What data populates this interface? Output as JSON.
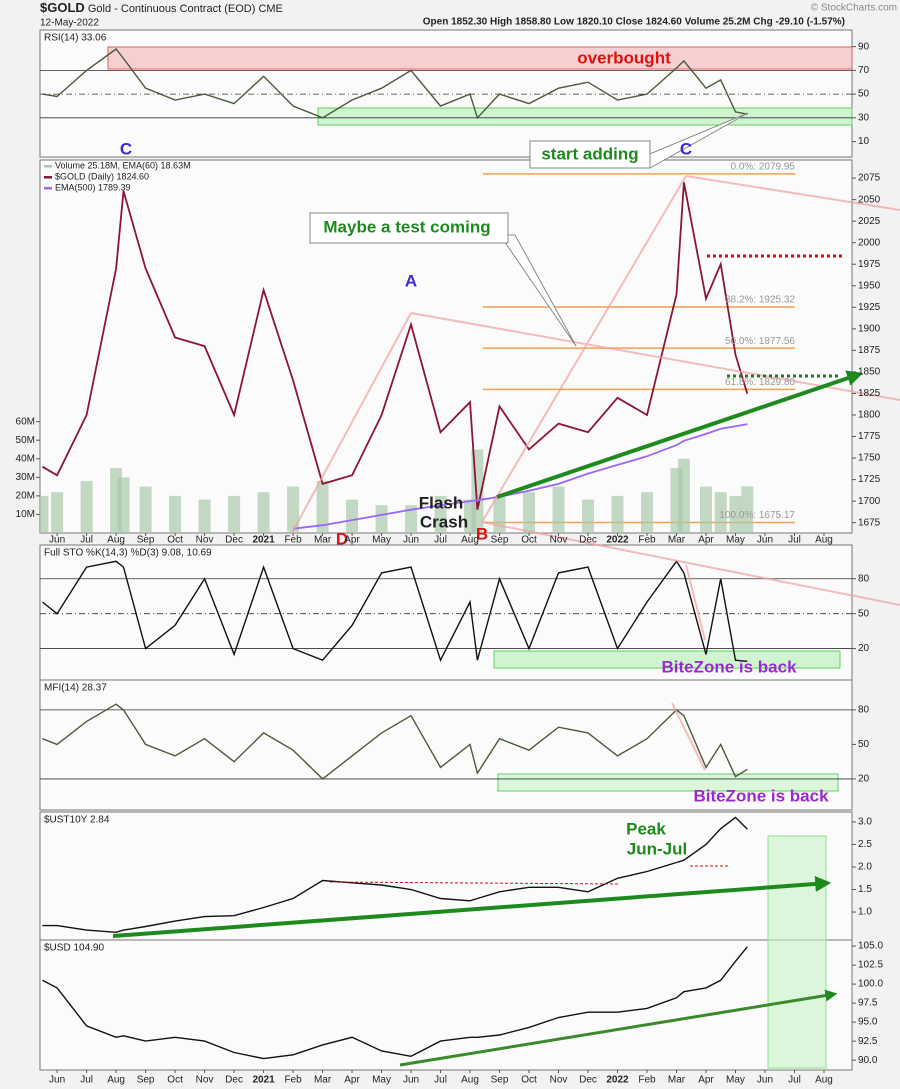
{
  "header": {
    "symbol": "$GOLD",
    "name": "Gold - Continuous Contract (EOD)",
    "exchange": "CME",
    "date": "12-May-2022",
    "quote": "Open 1852.30 High 1858.80 Low 1820.10 Close 1824.60 Volume 25.2M Chg -29.10 (-1.57%)",
    "credit": "© StockCharts.com"
  },
  "chart_data": [
    {
      "type": "line",
      "title": "RSI(14) 33.06",
      "xlim": [
        -0.58,
        26.95
      ],
      "ylim": [
        -3,
        104
      ],
      "yticks": [
        10,
        30,
        50,
        70,
        90
      ],
      "hlines": [
        30,
        50,
        70
      ],
      "x": [
        -0.5,
        0,
        1,
        2,
        2.25,
        3,
        4,
        5,
        6,
        7,
        8,
        9,
        10,
        11,
        12,
        13,
        14,
        14.25,
        15,
        16,
        17,
        18,
        19,
        20,
        21,
        21.25,
        22,
        22.5,
        23,
        23.4
      ],
      "series": [
        {
          "color": "#4a5a3a",
          "values": [
            50,
            48,
            70,
            88,
            80,
            55,
            45,
            50,
            42,
            65,
            40,
            30,
            45,
            55,
            70,
            40,
            50,
            30,
            50,
            42,
            55,
            60,
            45,
            50,
            72,
            78,
            55,
            62,
            35,
            33.06
          ]
        }
      ],
      "annotations": [
        "overbought",
        "start adding"
      ]
    },
    {
      "type": "line",
      "xlim": [
        -0.58,
        26.95
      ],
      "ylim": [
        1663,
        2096
      ],
      "y2lim": [
        0,
        201
      ],
      "yticks": [
        1675,
        1700,
        1725,
        1750,
        1775,
        1800,
        1825,
        1850,
        1875,
        1900,
        1925,
        1950,
        1975,
        2000,
        2025,
        2050,
        2075
      ],
      "y2ticks": [
        {
          "value": 10,
          "label": "10M"
        },
        {
          "value": 20,
          "label": "20M"
        },
        {
          "value": 30,
          "label": "30M"
        },
        {
          "value": 40,
          "label": "40M"
        },
        {
          "value": 50,
          "label": "50M"
        },
        {
          "value": 60,
          "label": "60M"
        }
      ],
      "xticks": [
        {
          "value": 0,
          "label": "Jun"
        },
        {
          "value": 1,
          "label": "Jul"
        },
        {
          "value": 2,
          "label": "Aug"
        },
        {
          "value": 3,
          "label": "Sep"
        },
        {
          "value": 4,
          "label": "Oct"
        },
        {
          "value": 5,
          "label": "Nov"
        },
        {
          "value": 6,
          "label": "Dec"
        },
        {
          "value": 7,
          "label": "2021"
        },
        {
          "value": 8,
          "label": "Feb"
        },
        {
          "value": 9,
          "label": "Mar"
        },
        {
          "value": 10,
          "label": "Apr"
        },
        {
          "value": 11,
          "label": "May"
        },
        {
          "value": 12,
          "label": "Jun"
        },
        {
          "value": 13,
          "label": "Jul"
        },
        {
          "value": 14,
          "label": "Aug"
        },
        {
          "value": 15,
          "label": "Sep"
        },
        {
          "value": 16,
          "label": "Oct"
        },
        {
          "value": 17,
          "label": "Nov"
        },
        {
          "value": 18,
          "label": "Dec"
        },
        {
          "value": 19,
          "label": "2022"
        },
        {
          "value": 20,
          "label": "Feb"
        },
        {
          "value": 21,
          "label": "Mar"
        },
        {
          "value": 22,
          "label": "Apr"
        },
        {
          "value": 23,
          "label": "May"
        },
        {
          "value": 24,
          "label": "Jun"
        },
        {
          "value": 25,
          "label": "Jul"
        },
        {
          "value": 26,
          "label": "Aug"
        }
      ],
      "x": [
        -0.5,
        0,
        1,
        2,
        2.25,
        3,
        4,
        5,
        6,
        7,
        8,
        9,
        10,
        11,
        12,
        13,
        14,
        14.25,
        15,
        16,
        17,
        18,
        19,
        20,
        21,
        21.25,
        22,
        22.5,
        23,
        23.4
      ],
      "series": [
        {
          "name": "Volume 25.18M, EMA(60) 18.63M",
          "type": "bar",
          "axis": "y2",
          "color": "#a9c9a9",
          "values": [
            20,
            22,
            28,
            35,
            30,
            25,
            20,
            18,
            20,
            22,
            25,
            28,
            18,
            15,
            15,
            20,
            18,
            45,
            20,
            22,
            25,
            18,
            20,
            22,
            35,
            40,
            25,
            22,
            20,
            25.18
          ]
        },
        {
          "name": "$GOLD (Daily) 1824.60",
          "color": "#8a1538",
          "values": [
            1740,
            1730,
            1800,
            1970,
            2060,
            1970,
            1890,
            1880,
            1800,
            1945,
            1840,
            1720,
            1730,
            1800,
            1905,
            1780,
            1815,
            1690,
            1810,
            1760,
            1790,
            1780,
            1820,
            1800,
            1940,
            2070,
            1935,
            1975,
            1870,
            1824.6
          ]
        },
        {
          "name": "EMA(500) 1789.39",
          "color": "#9966ff",
          "values": [
            null,
            null,
            null,
            null,
            null,
            null,
            null,
            null,
            null,
            null,
            1668,
            1672,
            1678,
            1684,
            1690,
            1695,
            1700,
            1701,
            1705,
            1712,
            1720,
            1732,
            1742,
            1752,
            1765,
            1770,
            1778,
            1784,
            1787,
            1789.39
          ]
        }
      ],
      "fib": [
        {
          "label": "0.0%: 2079.95",
          "value": 2079.95
        },
        {
          "label": "38.2%: 1925.32",
          "value": 1925.32
        },
        {
          "label": "50.0%: 1877.56",
          "value": 1877.56
        },
        {
          "label": "61.8%: 1829.80",
          "value": 1829.8
        },
        {
          "label": "100.0%: 1675.17",
          "value": 1675.17
        }
      ],
      "annotations": [
        "C",
        "C",
        "A",
        "D",
        "B",
        "Flash",
        "Crash",
        "Maybe a test coming"
      ]
    },
    {
      "type": "line",
      "title": "Full STO %K(14,3) %D(3) 9.08, 10.69",
      "xlim": [
        -0.58,
        26.95
      ],
      "ylim": [
        -7,
        109
      ],
      "yticks": [
        20,
        50,
        80
      ],
      "hlines": [
        20,
        50,
        80
      ],
      "x": [
        -0.5,
        0,
        1,
        2,
        2.25,
        3,
        4,
        5,
        6,
        7,
        8,
        9,
        10,
        11,
        12,
        13,
        14,
        14.25,
        15,
        16,
        17,
        18,
        19,
        20,
        21,
        21.25,
        22,
        22.5,
        23,
        23.4
      ],
      "series": [
        {
          "color": "#111111",
          "values": [
            60,
            50,
            90,
            95,
            90,
            20,
            40,
            80,
            15,
            90,
            20,
            10,
            40,
            85,
            90,
            10,
            60,
            10,
            80,
            20,
            85,
            90,
            20,
            60,
            95,
            85,
            15,
            80,
            10,
            9.08
          ]
        }
      ],
      "annotations": [
        "BiteZone is back"
      ]
    },
    {
      "type": "line",
      "title": "MFI(14) 28.37",
      "xlim": [
        -0.58,
        26.95
      ],
      "ylim": [
        -7,
        106
      ],
      "yticks": [
        20,
        50,
        80
      ],
      "hlines": [
        20,
        80
      ],
      "x": [
        -0.5,
        0,
        1,
        2,
        2.25,
        3,
        4,
        5,
        6,
        7,
        8,
        9,
        10,
        11,
        12,
        13,
        14,
        14.25,
        15,
        16,
        17,
        18,
        19,
        20,
        21,
        21.25,
        22,
        22.5,
        23,
        23.4
      ],
      "series": [
        {
          "color": "#4a5a3a",
          "values": [
            55,
            50,
            70,
            85,
            80,
            50,
            40,
            55,
            35,
            60,
            45,
            20,
            40,
            60,
            75,
            30,
            50,
            25,
            55,
            45,
            65,
            60,
            40,
            55,
            80,
            75,
            30,
            50,
            22,
            28.37
          ]
        }
      ],
      "annotations": [
        "BiteZone is back"
      ]
    },
    {
      "type": "line",
      "title": "$UST10Y 2.84",
      "xlim": [
        -0.58,
        26.95
      ],
      "ylim": [
        0.38,
        3.22
      ],
      "yticks": [
        {
          "value": 1,
          "label": "1.0"
        },
        1.5,
        {
          "value": 2,
          "label": "2.0"
        },
        2.5,
        {
          "value": 3,
          "label": "3.0"
        }
      ],
      "x": [
        -0.5,
        0,
        1,
        2,
        2.25,
        3,
        4,
        5,
        6,
        7,
        8,
        9,
        10,
        11,
        12,
        13,
        14,
        14.25,
        15,
        16,
        17,
        18,
        19,
        20,
        21,
        21.25,
        22,
        22.5,
        23,
        23.4
      ],
      "series": [
        {
          "color": "#111111",
          "values": [
            0.7,
            0.7,
            0.6,
            0.55,
            0.6,
            0.68,
            0.8,
            0.9,
            0.92,
            1.1,
            1.3,
            1.7,
            1.65,
            1.6,
            1.5,
            1.3,
            1.25,
            1.3,
            1.45,
            1.55,
            1.55,
            1.45,
            1.75,
            1.9,
            2.1,
            2.15,
            2.5,
            2.85,
            3.1,
            2.84
          ]
        }
      ],
      "annotations": [
        "Peak",
        "Jun-Jul"
      ]
    },
    {
      "type": "line",
      "title": "$USD 104.90",
      "xlim": [
        -0.58,
        26.95
      ],
      "ylim": [
        88.7,
        105.8
      ],
      "yticks": [
        {
          "value": 90,
          "label": "90.0"
        },
        92.5,
        {
          "value": 95,
          "label": "95.0"
        },
        97.5,
        {
          "value": 100,
          "label": "100.0"
        },
        102.5,
        {
          "value": 105,
          "label": "105.0"
        }
      ],
      "xticks": [
        {
          "value": 0,
          "label": "Jun"
        },
        {
          "value": 1,
          "label": "Jul"
        },
        {
          "value": 2,
          "label": "Aug"
        },
        {
          "value": 3,
          "label": "Sep"
        },
        {
          "value": 4,
          "label": "Oct"
        },
        {
          "value": 5,
          "label": "Nov"
        },
        {
          "value": 6,
          "label": "Dec"
        },
        {
          "value": 7,
          "label": "2021"
        },
        {
          "value": 8,
          "label": "Feb"
        },
        {
          "value": 9,
          "label": "Mar"
        },
        {
          "value": 10,
          "label": "Apr"
        },
        {
          "value": 11,
          "label": "May"
        },
        {
          "value": 12,
          "label": "Jun"
        },
        {
          "value": 13,
          "label": "Jul"
        },
        {
          "value": 14,
          "label": "Aug"
        },
        {
          "value": 15,
          "label": "Sep"
        },
        {
          "value": 16,
          "label": "Oct"
        },
        {
          "value": 17,
          "label": "Nov"
        },
        {
          "value": 18,
          "label": "Dec"
        },
        {
          "value": 19,
          "label": "2022"
        },
        {
          "value": 20,
          "label": "Feb"
        },
        {
          "value": 21,
          "label": "Mar"
        },
        {
          "value": 22,
          "label": "Apr"
        },
        {
          "value": 23,
          "label": "May"
        },
        {
          "value": 24,
          "label": "Jun"
        },
        {
          "value": 25,
          "label": "Jul"
        },
        {
          "value": 26,
          "label": "Aug"
        }
      ],
      "x": [
        -0.5,
        0,
        1,
        2,
        2.25,
        3,
        4,
        5,
        6,
        7,
        8,
        9,
        10,
        11,
        12,
        13,
        14,
        14.25,
        15,
        16,
        17,
        18,
        19,
        20,
        21,
        21.25,
        22,
        22.5,
        23,
        23.4
      ],
      "series": [
        {
          "color": "#111111",
          "values": [
            100.5,
            99.5,
            94.5,
            93,
            93.2,
            92.5,
            93,
            92.5,
            91,
            90.2,
            90.7,
            92,
            93,
            91.2,
            90.5,
            92.5,
            93,
            93,
            93.3,
            94.3,
            95.6,
            96.3,
            96.3,
            96.8,
            98.2,
            99,
            99.5,
            100.5,
            103,
            104.9
          ]
        }
      ]
    }
  ]
}
